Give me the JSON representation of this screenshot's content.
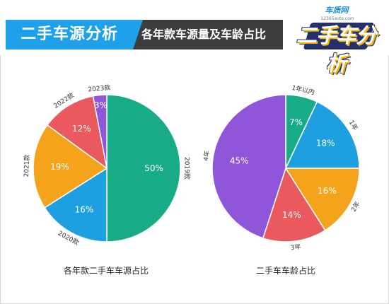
{
  "header": {
    "section_title": "二手车源分析",
    "subtitle": "各年款车源量及车龄占比",
    "logo_site": "车质网",
    "logo_url": "12365auto.com",
    "logo_text": "二手车分析",
    "colors": {
      "band": "#3d3d3d",
      "accent": "#1ea0ea"
    }
  },
  "chart_data": [
    {
      "type": "pie",
      "title": "各年款二手车车源占比",
      "slices": [
        {
          "label": "2019款",
          "value": 50,
          "display": "50%",
          "color": "#17ac87"
        },
        {
          "label": "2020款",
          "value": 16,
          "display": "16%",
          "color": "#1ea0e0"
        },
        {
          "label": "2021款",
          "value": 19,
          "display": "19%",
          "color": "#f5a31a"
        },
        {
          "label": "2022款",
          "value": 12,
          "display": "12%",
          "color": "#e9595d"
        },
        {
          "label": "2023款",
          "value": 3,
          "display": "3%",
          "color": "#8f56d9"
        }
      ]
    },
    {
      "type": "pie",
      "title": "二手车车龄占比",
      "slices": [
        {
          "label": "1年以内",
          "value": 7,
          "display": "7%",
          "color": "#17ac87"
        },
        {
          "label": "1年",
          "value": 18,
          "display": "18%",
          "color": "#1ea0e0"
        },
        {
          "label": "2年",
          "value": 16,
          "display": "16%",
          "color": "#f5a31a"
        },
        {
          "label": "3年",
          "value": 14,
          "display": "14%",
          "color": "#e9595d"
        },
        {
          "label": "4年",
          "value": 45,
          "display": "45%",
          "color": "#8f56d9"
        }
      ]
    }
  ]
}
